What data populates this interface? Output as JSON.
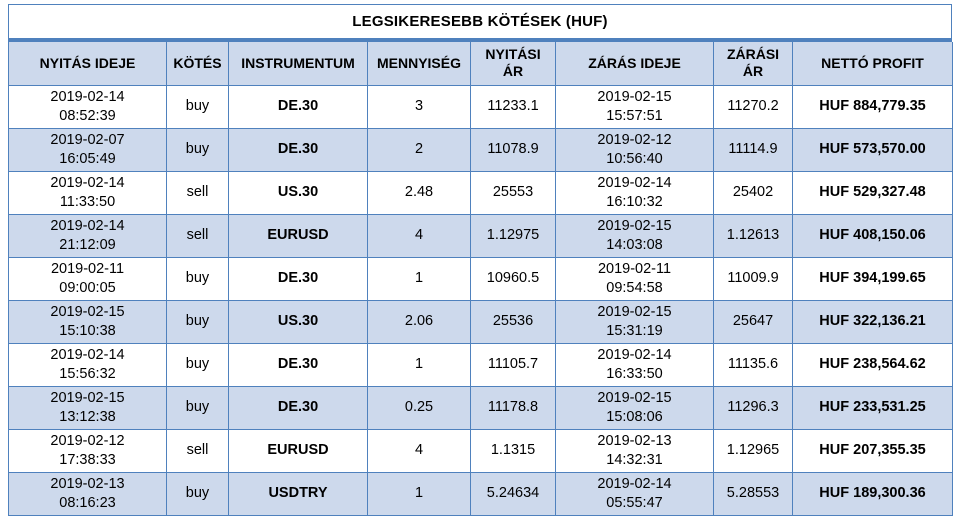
{
  "title": "LEGSIKERESEBB KÖTÉSEK (HUF)",
  "colors": {
    "border_blue": "#4f81bd",
    "header_bg": "#cdd9ec",
    "row_stripe_bg": "#cdd9ec",
    "row_bg": "#ffffff",
    "text": "#000000",
    "background": "#ffffff"
  },
  "table": {
    "columns": [
      "NYITÁS IDEJE",
      "KÖTÉS",
      "INSTRUMENTUM",
      "MENNYISÉG",
      "NYITÁSI\nÁR",
      "ZÁRÁS IDEJE",
      "ZÁRÁSI\nÁR",
      "NETTÓ PROFIT"
    ],
    "rows": [
      [
        "2019-02-14\n08:52:39",
        "buy",
        "DE.30",
        "3",
        "11233.1",
        "2019-02-15\n15:57:51",
        "11270.2",
        "HUF 884,779.35"
      ],
      [
        "2019-02-07\n16:05:49",
        "buy",
        "DE.30",
        "2",
        "11078.9",
        "2019-02-12\n10:56:40",
        "11114.9",
        "HUF 573,570.00"
      ],
      [
        "2019-02-14\n11:33:50",
        "sell",
        "US.30",
        "2.48",
        "25553",
        "2019-02-14\n16:10:32",
        "25402",
        "HUF 529,327.48"
      ],
      [
        "2019-02-14\n21:12:09",
        "sell",
        "EURUSD",
        "4",
        "1.12975",
        "2019-02-15\n14:03:08",
        "1.12613",
        "HUF 408,150.06"
      ],
      [
        "2019-02-11\n09:00:05",
        "buy",
        "DE.30",
        "1",
        "10960.5",
        "2019-02-11\n09:54:58",
        "11009.9",
        "HUF 394,199.65"
      ],
      [
        "2019-02-15\n15:10:38",
        "buy",
        "US.30",
        "2.06",
        "25536",
        "2019-02-15\n15:31:19",
        "25647",
        "HUF 322,136.21"
      ],
      [
        "2019-02-14\n15:56:32",
        "buy",
        "DE.30",
        "1",
        "11105.7",
        "2019-02-14\n16:33:50",
        "11135.6",
        "HUF 238,564.62"
      ],
      [
        "2019-02-15\n13:12:38",
        "buy",
        "DE.30",
        "0.25",
        "11178.8",
        "2019-02-15\n15:08:06",
        "11296.3",
        "HUF 233,531.25"
      ],
      [
        "2019-02-12\n17:38:33",
        "sell",
        "EURUSD",
        "4",
        "1.1315",
        "2019-02-13\n14:32:31",
        "1.12965",
        "HUF 207,355.35"
      ],
      [
        "2019-02-13\n08:16:23",
        "buy",
        "USDTRY",
        "1",
        "5.24634",
        "2019-02-14\n05:55:47",
        "5.28553",
        "HUF 189,300.36"
      ]
    ]
  }
}
